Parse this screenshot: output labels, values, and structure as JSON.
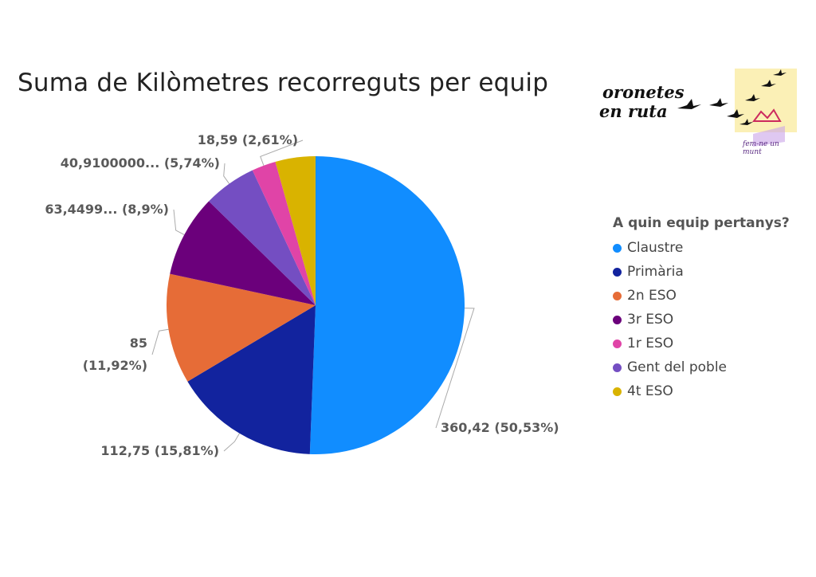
{
  "title": "Suma de Kilòmetres recorreguts per equip",
  "logo": {
    "text_line1": "oronetes",
    "text_line2": "en ruta",
    "signature": "fem-ne un munt"
  },
  "legend": {
    "title": "A quin equip pertanys?",
    "placement": "right"
  },
  "chart_data": {
    "type": "pie",
    "title": "Suma de Kilòmetres recorreguts per equip",
    "legend_title": "A quin equip pertanys?",
    "start_angle_deg": 0,
    "direction": "clockwise",
    "slices": [
      {
        "name": "Claustre",
        "value": 360.42,
        "percent": 50.53,
        "label": "360,42 (50,53%)",
        "color": "#118dff"
      },
      {
        "name": "Primària",
        "value": 112.75,
        "percent": 15.81,
        "label": "112,75 (15,81%)",
        "color": "#12239e"
      },
      {
        "name": "2n ESO",
        "value": 85,
        "percent": 11.92,
        "label": "85\n(11,92%)",
        "color": "#e66c37"
      },
      {
        "name": "3r ESO",
        "value": 63.4499,
        "percent": 8.9,
        "label": "63,4499... (8,9%)",
        "color": "#6b007b"
      },
      {
        "name": "1r ESO",
        "value": 18.59,
        "percent": 2.61,
        "label": "18,59 (2,61%)",
        "color": "#e044a7"
      },
      {
        "name": "Gent del poble",
        "value": 40.91,
        "percent": 5.74,
        "label": "40,9100000... (5,74%)",
        "color": "#744ec2"
      },
      {
        "name": "4t ESO",
        "value": 31.0,
        "percent": 4.35,
        "label": "",
        "color": "#d9b300"
      }
    ]
  }
}
